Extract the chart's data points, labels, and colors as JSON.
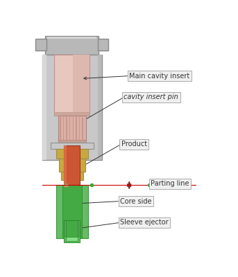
{
  "bg_color": "#ffffff",
  "fig_width": 3.43,
  "fig_height": 4.0,
  "dpi": 100,
  "labels": {
    "main_cavity_insert": "Main cavity insert",
    "cavity_insert_pin": "cavity insert pin",
    "product": "Product",
    "parting_line": "Parting line",
    "core_side": "Core side",
    "sleeve_ejector": "Sleeve ejector"
  },
  "colors": {
    "gray_outer": "#b8b8b8",
    "gray_mid": "#c8c8c8",
    "gray_light": "#d8d8d8",
    "pink_top": "#e8c8be",
    "pink_cavity": "#dbb0a8",
    "pink_ribbed": "#d4a89e",
    "orange_product": "#cc5533",
    "yellow_sleeve": "#c8a840",
    "green_outer": "#66bb66",
    "green_inner": "#44aa44",
    "green_stem": "#55aa55",
    "dark_red": "#882222",
    "label_bg": "#f0f0f0",
    "label_border": "#aaaaaa",
    "arrow_color": "#333333",
    "parting_dot": "#33aa33",
    "parting_line_color": "#cc0000",
    "parting_h_line": "#cc0000"
  }
}
